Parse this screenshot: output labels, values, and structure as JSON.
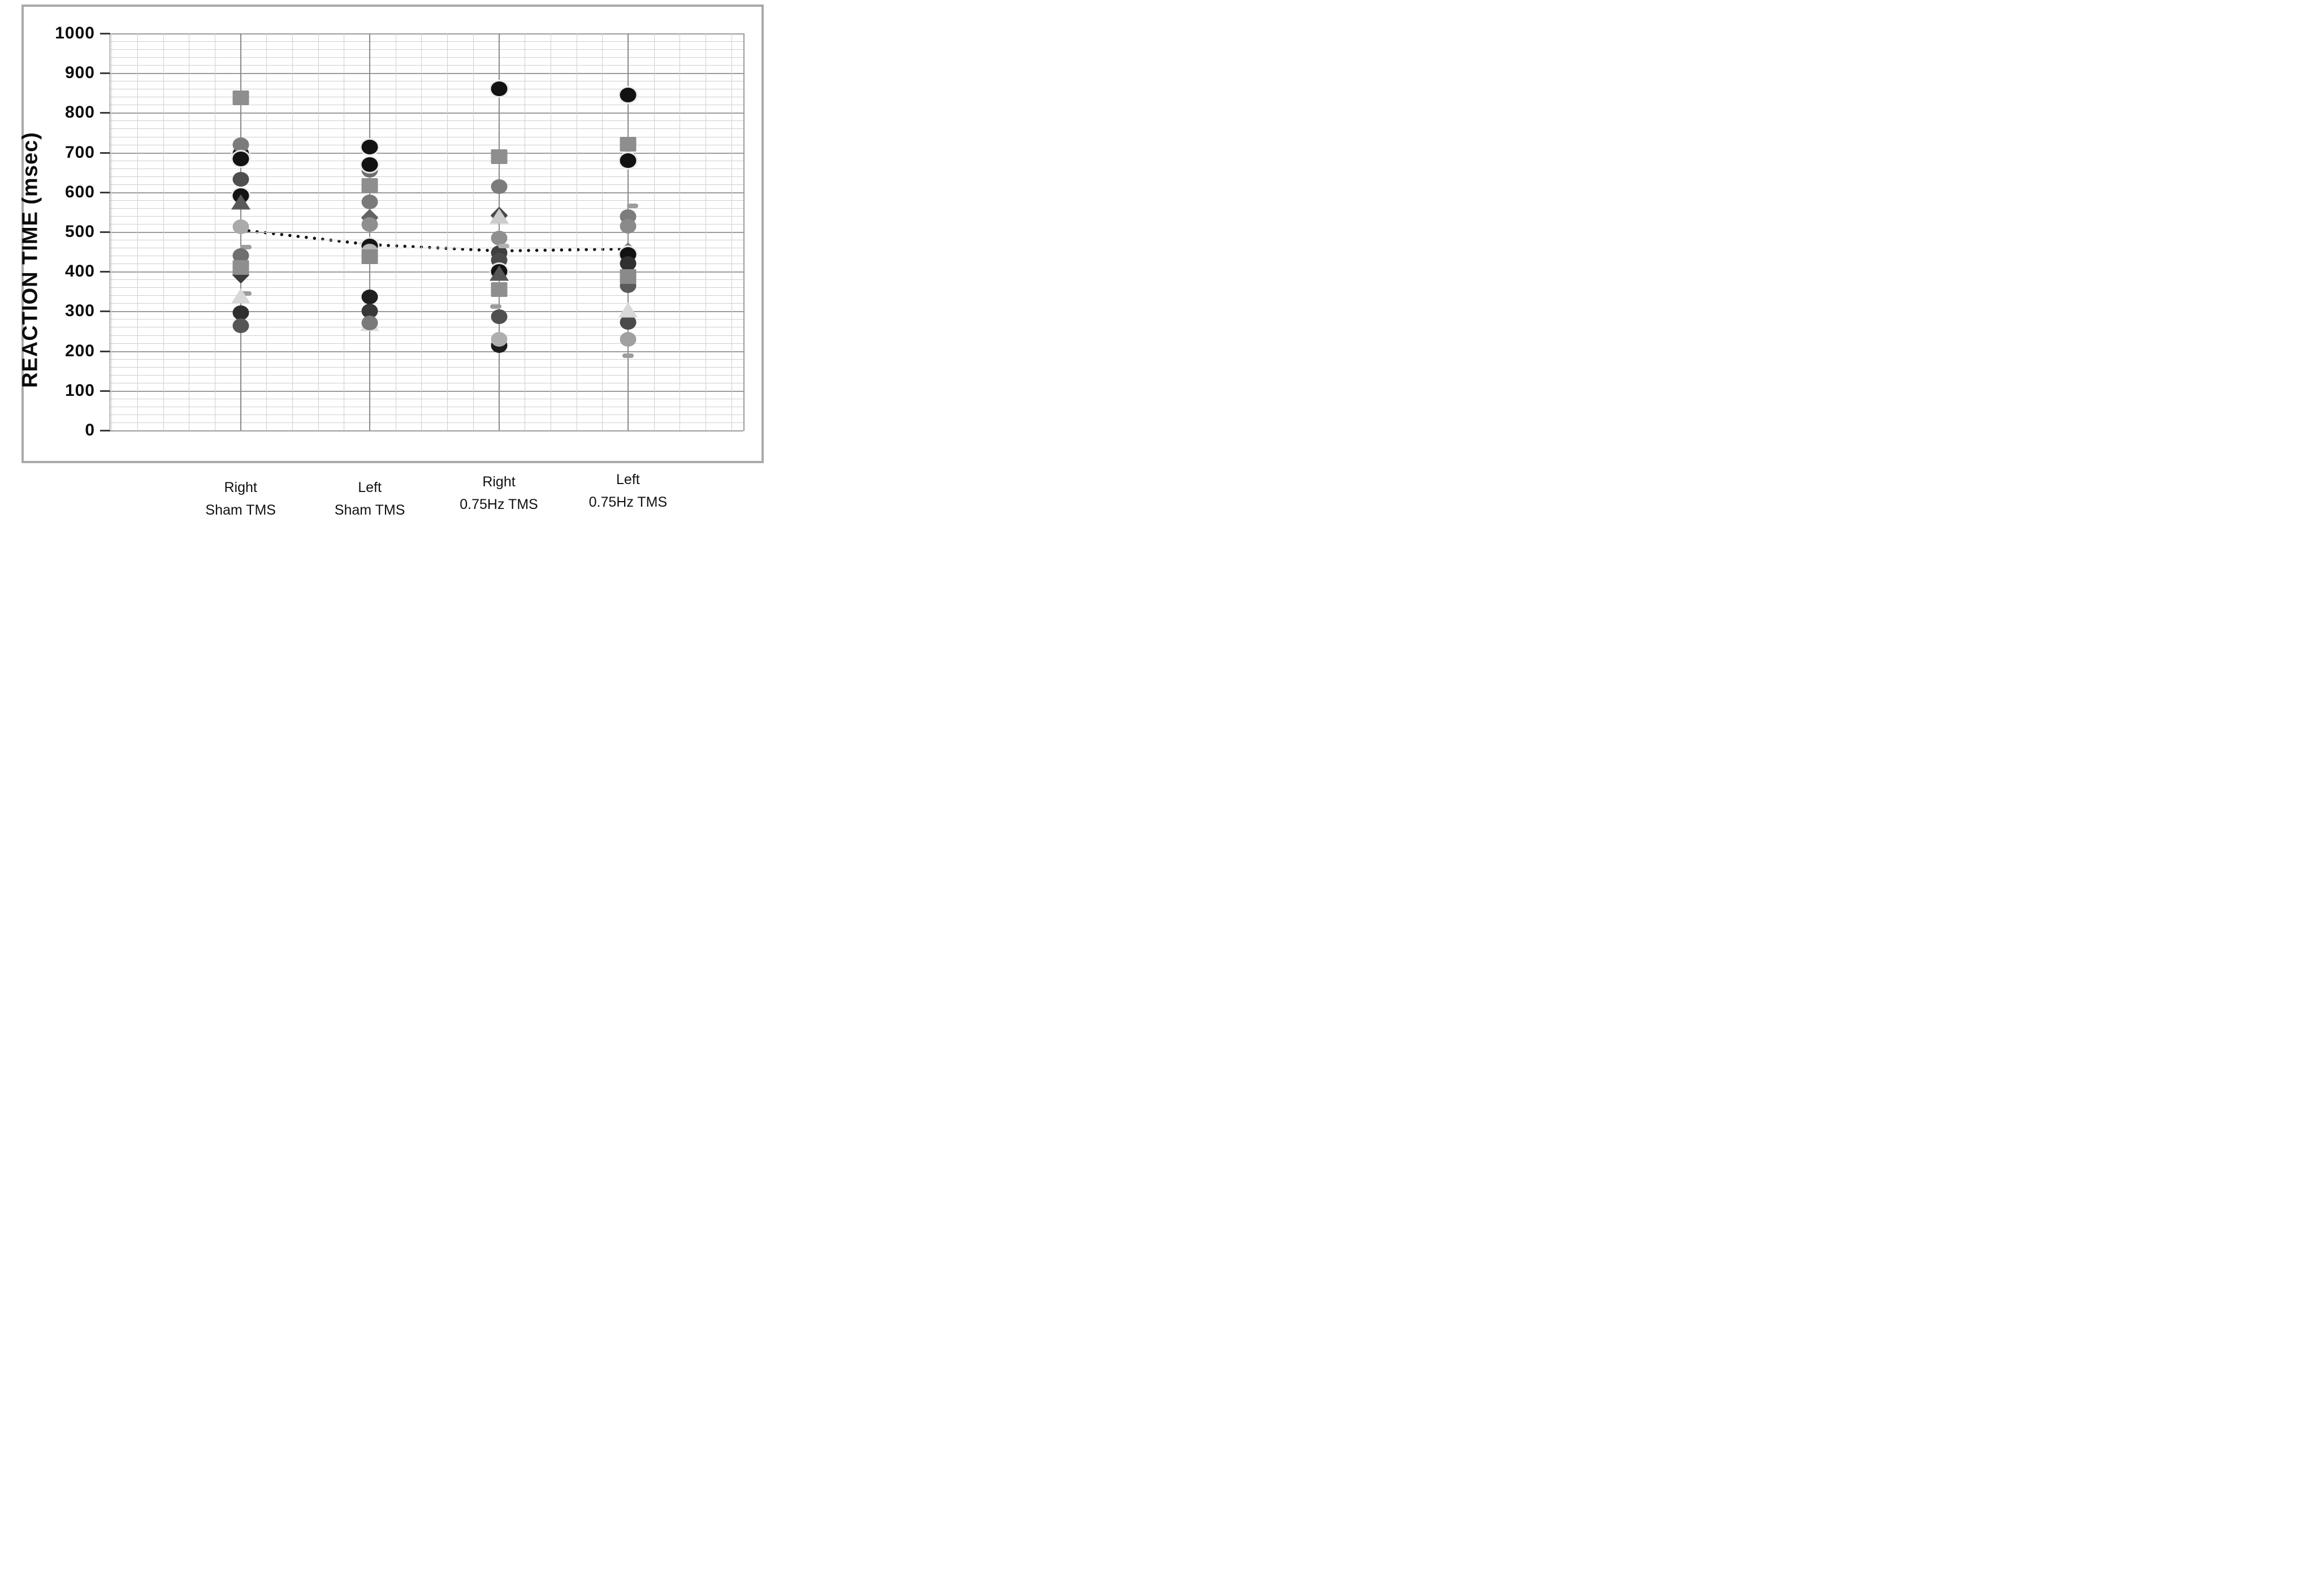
{
  "figure": {
    "y_axis": {
      "title": "REACTION TIME (msec)",
      "tick_labels": [
        "1000",
        "900",
        "800",
        "700",
        "600",
        "500",
        "400",
        "300",
        "200",
        "100",
        "0"
      ],
      "min": 0,
      "max": 1000,
      "minor_step": 20,
      "major_step": 100
    },
    "x_axis": {
      "categories": [
        {
          "line1": "Right",
          "line2": "Sham TMS"
        },
        {
          "line1": "Left",
          "line2": "Sham TMS"
        },
        {
          "line1": "Right",
          "line2": "0.75Hz TMS"
        },
        {
          "line1": "Left",
          "line2": "0.75Hz TMS"
        }
      ]
    }
  },
  "chart_data": {
    "type": "scatter",
    "ylabel": "REACTION TIME (msec)",
    "ylim": [
      0,
      1000
    ],
    "grid": "on",
    "gridline_minor_step_msec": 20,
    "gridline_major_step_msec": 100,
    "legend": "none",
    "categories": [
      "Right Sham TMS",
      "Left Sham TMS",
      "Right 0.75Hz TMS",
      "Left 0.75Hz TMS"
    ],
    "mean_line": {
      "style": "dotted",
      "color": "#111111",
      "values": [
        505,
        468,
        452,
        457
      ]
    },
    "points_by_category": [
      [
        {
          "s": "square",
          "v": 838,
          "c": "#8e8e8e"
        },
        {
          "s": "circle",
          "v": 696,
          "c": "#161616",
          "ring": true
        },
        {
          "s": "circle",
          "v": 719,
          "c": "#7c7c7c"
        },
        {
          "s": "circle",
          "v": 684,
          "c": "#121212",
          "ring": true
        },
        {
          "s": "circle",
          "v": 633,
          "c": "#4e4e4e"
        },
        {
          "s": "circle",
          "v": 591,
          "c": "#131313",
          "ring": true
        },
        {
          "s": "triangle",
          "v": 557,
          "c": "#5a5a5a"
        },
        {
          "s": "circle",
          "v": 513,
          "c": "#aaaaaa"
        },
        {
          "s": "dash",
          "v": 461,
          "c": "#9c9c9c",
          "dx": 9
        },
        {
          "s": "circle",
          "v": 440,
          "c": "#6f6f6f"
        },
        {
          "s": "diamond",
          "v": 392,
          "c": "#3c3c3c"
        },
        {
          "s": "square",
          "v": 410,
          "c": "#8e8e8e"
        },
        {
          "s": "dash",
          "v": 345,
          "c": "#9c9c9c",
          "dx": 9
        },
        {
          "s": "circle",
          "v": 297,
          "c": "#2f2f2f"
        },
        {
          "s": "triangle",
          "v": 320,
          "c": "#d8d8d8"
        },
        {
          "s": "circle",
          "v": 264,
          "c": "#565656"
        }
      ],
      [
        {
          "s": "circle",
          "v": 714,
          "c": "#121212",
          "ring": true
        },
        {
          "s": "circle",
          "v": 655,
          "c": "#6e6e6e"
        },
        {
          "s": "circle",
          "v": 669,
          "c": "#121212",
          "ring": true
        },
        {
          "s": "square",
          "v": 617,
          "c": "#8e8e8e"
        },
        {
          "s": "circle",
          "v": 576,
          "c": "#7a7a7a"
        },
        {
          "s": "diamond",
          "v": 536,
          "c": "#636363"
        },
        {
          "s": "circle",
          "v": 519,
          "c": "#8f8f8f"
        },
        {
          "s": "dash",
          "v": 470,
          "c": "#b0b0b0",
          "dx": -8
        },
        {
          "s": "circle",
          "v": 464,
          "c": "#161616",
          "ring": true
        },
        {
          "s": "circle",
          "v": 452,
          "c": "#b5b5b5"
        },
        {
          "s": "square",
          "v": 437,
          "c": "#8a8a8a"
        },
        {
          "s": "circle",
          "v": 336,
          "c": "#1f1f1f"
        },
        {
          "s": "circle",
          "v": 300,
          "c": "#383838"
        },
        {
          "s": "triangle",
          "v": 251,
          "c": "#dedede"
        },
        {
          "s": "circle",
          "v": 270,
          "c": "#7a7a7a"
        }
      ],
      [
        {
          "s": "circle",
          "v": 860,
          "c": "#121212",
          "ring": true
        },
        {
          "s": "square",
          "v": 689,
          "c": "#8e8e8e"
        },
        {
          "s": "circle",
          "v": 614,
          "c": "#7c7c7c"
        },
        {
          "s": "diamond",
          "v": 541,
          "c": "#484848"
        },
        {
          "s": "triangle",
          "v": 521,
          "c": "#cccccc"
        },
        {
          "s": "circle",
          "v": 448,
          "c": "#3f3f3f"
        },
        {
          "s": "circle",
          "v": 429,
          "c": "#4a4a4a"
        },
        {
          "s": "circle",
          "v": 484,
          "c": "#8f8f8f"
        },
        {
          "s": "dash",
          "v": 464,
          "c": "#b0b0b0",
          "dx": 8
        },
        {
          "s": "circle",
          "v": 400,
          "c": "#121212",
          "ring": true
        },
        {
          "s": "triangle",
          "v": 377,
          "c": "#575757"
        },
        {
          "s": "square",
          "v": 354,
          "c": "#8e8e8e"
        },
        {
          "s": "dash",
          "v": 312,
          "c": "#9c9c9c",
          "dx": -6
        },
        {
          "s": "circle",
          "v": 287,
          "c": "#4f4f4f"
        },
        {
          "s": "circle",
          "v": 213,
          "c": "#1c1c1c"
        },
        {
          "s": "circle",
          "v": 230,
          "c": "#aeaeae"
        }
      ],
      [
        {
          "s": "circle",
          "v": 845,
          "c": "#121212",
          "ring": true
        },
        {
          "s": "square",
          "v": 721,
          "c": "#8e8e8e"
        },
        {
          "s": "circle",
          "v": 679,
          "c": "#121212",
          "ring": true
        },
        {
          "s": "dash",
          "v": 565,
          "c": "#9c9c9c",
          "dx": 8
        },
        {
          "s": "circle",
          "v": 539,
          "c": "#7c7c7c"
        },
        {
          "s": "circle",
          "v": 514,
          "c": "#8a8a8a"
        },
        {
          "s": "diamond",
          "v": 452,
          "c": "#787878"
        },
        {
          "s": "circle",
          "v": 443,
          "c": "#121212",
          "ring": true
        },
        {
          "s": "circle",
          "v": 420,
          "c": "#303030"
        },
        {
          "s": "circle",
          "v": 365,
          "c": "#5a5a5a"
        },
        {
          "s": "square",
          "v": 388,
          "c": "#8a8a8a"
        },
        {
          "s": "circle",
          "v": 272,
          "c": "#4a4a4a"
        },
        {
          "s": "triangle",
          "v": 285,
          "c": "#d8d8d8"
        },
        {
          "s": "circle",
          "v": 230,
          "c": "#a0a0a0"
        },
        {
          "s": "dash",
          "v": 188,
          "c": "#9c9c9c"
        }
      ]
    ]
  }
}
